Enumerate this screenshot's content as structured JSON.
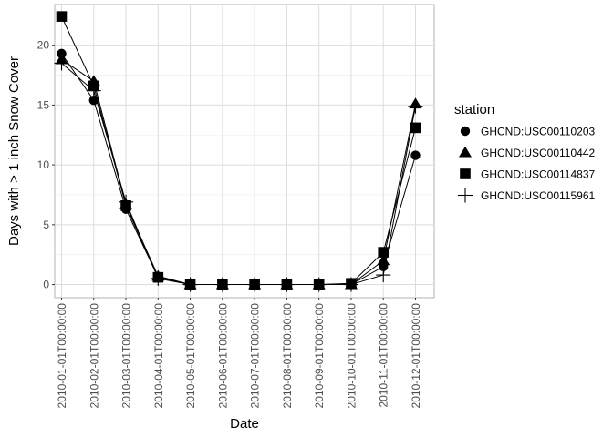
{
  "chart_data": {
    "type": "line",
    "xlabel": "Date",
    "ylabel": "Days with > 1 inch Snow Cover",
    "ylim": [
      -1.1,
      23.4
    ],
    "yticks": [
      0,
      5,
      10,
      15,
      20
    ],
    "grid": true,
    "legend_title": "station",
    "legend_position": "right",
    "categories": [
      "2010-01-01T00:00:00",
      "2010-02-01T00:00:00",
      "2010-03-01T00:00:00",
      "2010-04-01T00:00:00",
      "2010-05-01T00:00:00",
      "2010-06-01T00:00:00",
      "2010-07-01T00:00:00",
      "2010-08-01T00:00:00",
      "2010-09-01T00:00:00",
      "2010-10-01T00:00:00",
      "2010-11-01T00:00:00",
      "2010-12-01T00:00:00"
    ],
    "series": [
      {
        "name": "GHCND:USC00110203",
        "shape": "circle",
        "values": [
          19.3,
          15.4,
          6.3,
          0.6,
          0,
          0,
          0,
          0,
          0,
          0,
          1.5,
          10.8
        ]
      },
      {
        "name": "GHCND:USC00110442",
        "shape": "triangle",
        "values": [
          18.8,
          17.0,
          6.7,
          0.7,
          0,
          0,
          0,
          0,
          0,
          0,
          2.0,
          15.1
        ]
      },
      {
        "name": "GHCND:USC00114837",
        "shape": "square",
        "values": [
          22.4,
          16.6,
          6.6,
          0.6,
          0,
          0,
          0,
          0,
          0,
          0.1,
          2.7,
          13.1
        ]
      },
      {
        "name": "GHCND:USC00115961",
        "shape": "plus",
        "values": [
          18.5,
          16.2,
          6.9,
          0.5,
          0,
          0,
          0,
          0,
          0,
          0,
          0.8,
          14.9
        ]
      }
    ]
  }
}
